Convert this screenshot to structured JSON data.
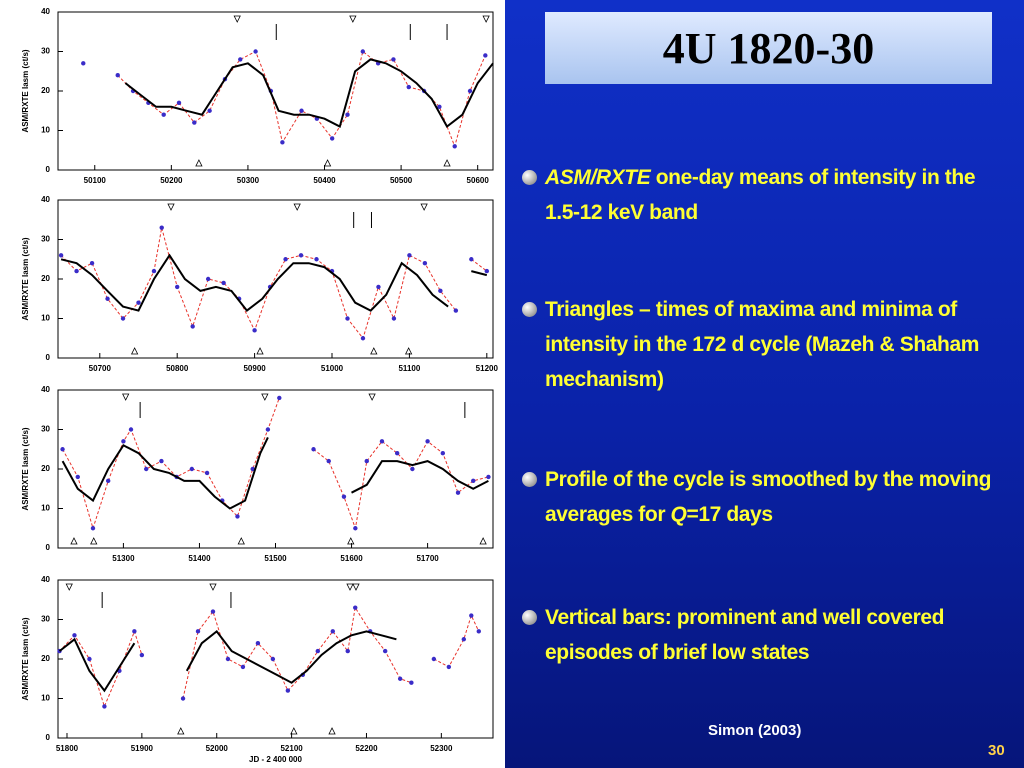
{
  "title": "4U 1820-30",
  "bullets": [
    [
      {
        "text": "ASM/RXTE",
        "italic": true
      },
      {
        "text": " one-day means of intensity in the 1.5-12 keV band"
      }
    ],
    [
      {
        "text": "Triangles – times of maxima and minima of intensity in  the  172 d cycle  (Mazeh & Shaham mechanism)"
      }
    ],
    [
      {
        "text": "Profile of  the  cycle is  smoothed  by the moving averages for "
      },
      {
        "text": "Q",
        "italic": true
      },
      {
        "text": "=17 days"
      }
    ],
    [
      {
        "text": "Vertical bars: prominent and well covered episodes of brief low states"
      }
    ]
  ],
  "credit": "Simon (2003)",
  "page_number": "30",
  "chart_data": [
    {
      "type": "line",
      "ylabel": "ASM/RXTE  Iasm  (ct/s)",
      "xlim": [
        50052,
        50620
      ],
      "ylim": [
        0,
        40
      ],
      "xticks": [
        50100,
        50200,
        50300,
        50400,
        50500,
        50600
      ],
      "yticks": [
        0,
        10,
        20,
        30,
        40
      ],
      "series": [
        {
          "color": "#e8322a",
          "marker_color": "#3a2cc8",
          "x": [
            50085,
            50095,
            50130,
            50150,
            50170,
            50190,
            50210,
            50230,
            50250,
            50270,
            50290,
            50310,
            50330,
            50345,
            50370,
            50390,
            50410,
            50430,
            50450,
            50470,
            50490,
            50510,
            50530,
            50550,
            50570,
            50590,
            50610
          ],
          "values": [
            27,
            null,
            24,
            20,
            17,
            14,
            17,
            12,
            15,
            23,
            28,
            30,
            20,
            7,
            15,
            13,
            8,
            14,
            30,
            27,
            28,
            21,
            20,
            16,
            6,
            20,
            29
          ]
        },
        {
          "color": "#000000",
          "x": [
            50140,
            50160,
            50180,
            50200,
            50220,
            50240,
            50260,
            50280,
            50300,
            50320,
            50340,
            50360,
            50380,
            50400,
            50420,
            50440,
            50460,
            50480,
            50500,
            50520,
            50540,
            50560,
            50580,
            50600,
            50620
          ],
          "values": [
            22,
            19,
            16,
            16,
            15,
            14,
            20,
            26,
            27,
            24,
            15,
            14,
            14,
            13,
            11,
            25,
            28,
            27,
            25,
            22,
            18,
            11,
            14,
            22,
            27
          ]
        }
      ],
      "maxima": [
        50286,
        50437,
        50611
      ],
      "minima": [
        50236,
        50404,
        50560
      ],
      "low_states": [
        50337,
        50512,
        50560
      ]
    },
    {
      "type": "line",
      "ylabel": "ASM/RXTE  Iasm  (ct/s)",
      "xlim": [
        50646,
        51208
      ],
      "ylim": [
        0,
        40
      ],
      "xticks": [
        50700,
        50800,
        50900,
        51000,
        51100,
        51200
      ],
      "yticks": [
        0,
        10,
        20,
        30,
        40
      ],
      "series": [
        {
          "color": "#e8322a",
          "marker_color": "#3a2cc8",
          "x": [
            50650,
            50670,
            50690,
            50710,
            50730,
            50750,
            50770,
            50780,
            50800,
            50820,
            50840,
            50860,
            50880,
            50900,
            50920,
            50940,
            50960,
            50980,
            51000,
            51020,
            51040,
            51060,
            51080,
            51100,
            51120,
            51140,
            51160,
            51170,
            51180,
            51200
          ],
          "values": [
            26,
            22,
            24,
            15,
            10,
            14,
            22,
            33,
            18,
            8,
            20,
            19,
            15,
            7,
            18,
            25,
            26,
            25,
            22,
            10,
            5,
            18,
            10,
            26,
            24,
            17,
            12,
            null,
            25,
            22
          ]
        },
        {
          "color": "#000000",
          "x": [
            50650,
            50670,
            50690,
            50710,
            50730,
            50750,
            50770,
            50790,
            50810,
            50830,
            50850,
            50870,
            50890,
            50910,
            50930,
            50950,
            50970,
            50990,
            51010,
            51030,
            51050,
            51070,
            51090,
            51110,
            51130,
            51150,
            51165,
            51180,
            51200
          ],
          "values": [
            25,
            24,
            21,
            17,
            13,
            12,
            20,
            26,
            20,
            17,
            18,
            17,
            12,
            15,
            20,
            24,
            24,
            23,
            20,
            14,
            12,
            16,
            24,
            21,
            16,
            13,
            null,
            22,
            21
          ]
        }
      ],
      "maxima": [
        50792,
        50955,
        51119
      ],
      "minima": [
        50745,
        50907,
        51054,
        51099
      ],
      "low_states": [
        51028,
        51051
      ]
    },
    {
      "type": "line",
      "ylabel": "ASM/RXTE  Iasm  (ct/s)",
      "xlim": [
        51214,
        51786
      ],
      "ylim": [
        0,
        40
      ],
      "xticks": [
        51300,
        51400,
        51500,
        51600,
        51700
      ],
      "yticks": [
        0,
        10,
        20,
        30,
        40
      ],
      "series": [
        {
          "color": "#e8322a",
          "marker_color": "#3a2cc8",
          "x": [
            51220,
            51240,
            51260,
            51280,
            51300,
            51310,
            51330,
            51350,
            51370,
            51390,
            51410,
            51430,
            51450,
            51470,
            51490,
            51505,
            51520,
            51550,
            51570,
            51590,
            51605,
            51620,
            51640,
            51660,
            51680,
            51700,
            51720,
            51740,
            51760,
            51780
          ],
          "values": [
            25,
            18,
            5,
            17,
            27,
            30,
            20,
            22,
            18,
            20,
            19,
            12,
            8,
            20,
            30,
            38,
            null,
            25,
            22,
            13,
            5,
            22,
            27,
            24,
            20,
            27,
            24,
            14,
            17,
            18
          ]
        },
        {
          "color": "#000000",
          "x": [
            51220,
            51240,
            51260,
            51280,
            51300,
            51320,
            51340,
            51360,
            51380,
            51400,
            51420,
            51440,
            51460,
            51480,
            51490,
            51550,
            51600,
            51620,
            51640,
            51660,
            51680,
            51700,
            51720,
            51740,
            51760,
            51780
          ],
          "values": [
            22,
            15,
            12,
            20,
            26,
            24,
            20,
            19,
            17,
            17,
            13,
            10,
            12,
            24,
            28,
            null,
            14,
            16,
            22,
            22,
            21,
            22,
            20,
            17,
            15,
            17
          ]
        }
      ],
      "maxima": [
        51303,
        51486,
        51627
      ],
      "minima": [
        51235,
        51261,
        51455,
        51599,
        51773
      ],
      "low_states": [
        51322,
        51749
      ]
    },
    {
      "type": "line",
      "ylabel": "ASM/RXTE  Iasm  (ct/s)",
      "xlabel": "JD - 2 400 000",
      "xlim": [
        51788,
        52369
      ],
      "ylim": [
        0,
        40
      ],
      "xticks": [
        51800,
        51900,
        52000,
        52100,
        52200,
        52300
      ],
      "yticks": [
        0,
        10,
        20,
        30,
        40
      ],
      "series": [
        {
          "color": "#e8322a",
          "marker_color": "#3a2cc8",
          "x": [
            51790,
            51810,
            51830,
            51850,
            51870,
            51890,
            51900,
            51920,
            51955,
            51975,
            51995,
            52015,
            52035,
            52055,
            52075,
            52095,
            52115,
            52135,
            52155,
            52175,
            52185,
            52205,
            52225,
            52245,
            52260,
            52270,
            52290,
            52310,
            52330,
            52340,
            52350
          ],
          "values": [
            22,
            26,
            20,
            8,
            17,
            27,
            21,
            null,
            10,
            27,
            32,
            20,
            18,
            24,
            20,
            12,
            16,
            22,
            27,
            22,
            33,
            27,
            22,
            15,
            14,
            null,
            20,
            18,
            25,
            31,
            27
          ]
        },
        {
          "color": "#000000",
          "x": [
            51790,
            51810,
            51830,
            51850,
            51870,
            51890,
            51920,
            51960,
            51980,
            52000,
            52020,
            52040,
            52060,
            52080,
            52100,
            52120,
            52140,
            52160,
            52180,
            52200,
            52220,
            52240
          ],
          "values": [
            22,
            25,
            17,
            12,
            18,
            24,
            null,
            17,
            24,
            27,
            22,
            20,
            18,
            16,
            14,
            17,
            21,
            24,
            26,
            27,
            26,
            25
          ]
        }
      ],
      "maxima": [
        51803,
        51995,
        52178,
        52186
      ],
      "minima": [
        51952,
        52103,
        52154
      ],
      "low_states": [
        51847,
        52019
      ]
    }
  ]
}
